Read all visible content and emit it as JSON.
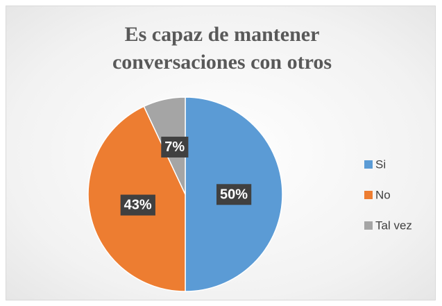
{
  "chart_data": {
    "type": "pie",
    "title": "Es capaz de mantener conversaciones con otros",
    "categories": [
      "Si",
      "No",
      "Tal vez"
    ],
    "values": [
      50,
      43,
      7
    ],
    "value_labels": [
      "50%",
      "43%",
      "7%"
    ],
    "colors": [
      "#5b9bd5",
      "#ed7d31",
      "#a5a5a5"
    ],
    "legend": "right"
  }
}
